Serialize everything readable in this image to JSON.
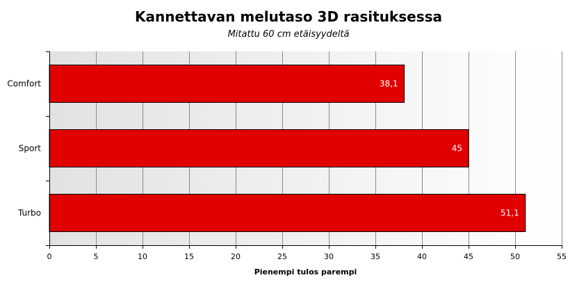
{
  "chart_data": {
    "type": "bar",
    "orientation": "horizontal",
    "title": "Kannettavan melutaso 3D rasituksessa",
    "subtitle": "Mitattu 60 cm etäisyydeltä",
    "xlabel": "Pienempi tulos parempi",
    "ylabel": "",
    "categories": [
      "Comfort",
      "Sport",
      "Turbo"
    ],
    "values": [
      38.1,
      45,
      51.1
    ],
    "data_labels": [
      "38,1",
      "45",
      "51,1"
    ],
    "xlim": [
      0,
      55
    ],
    "x_ticks": [
      0,
      5,
      10,
      15,
      20,
      25,
      30,
      35,
      40,
      45,
      50,
      55
    ],
    "grid": true,
    "legend": "none",
    "bar_color": "#e00000"
  }
}
